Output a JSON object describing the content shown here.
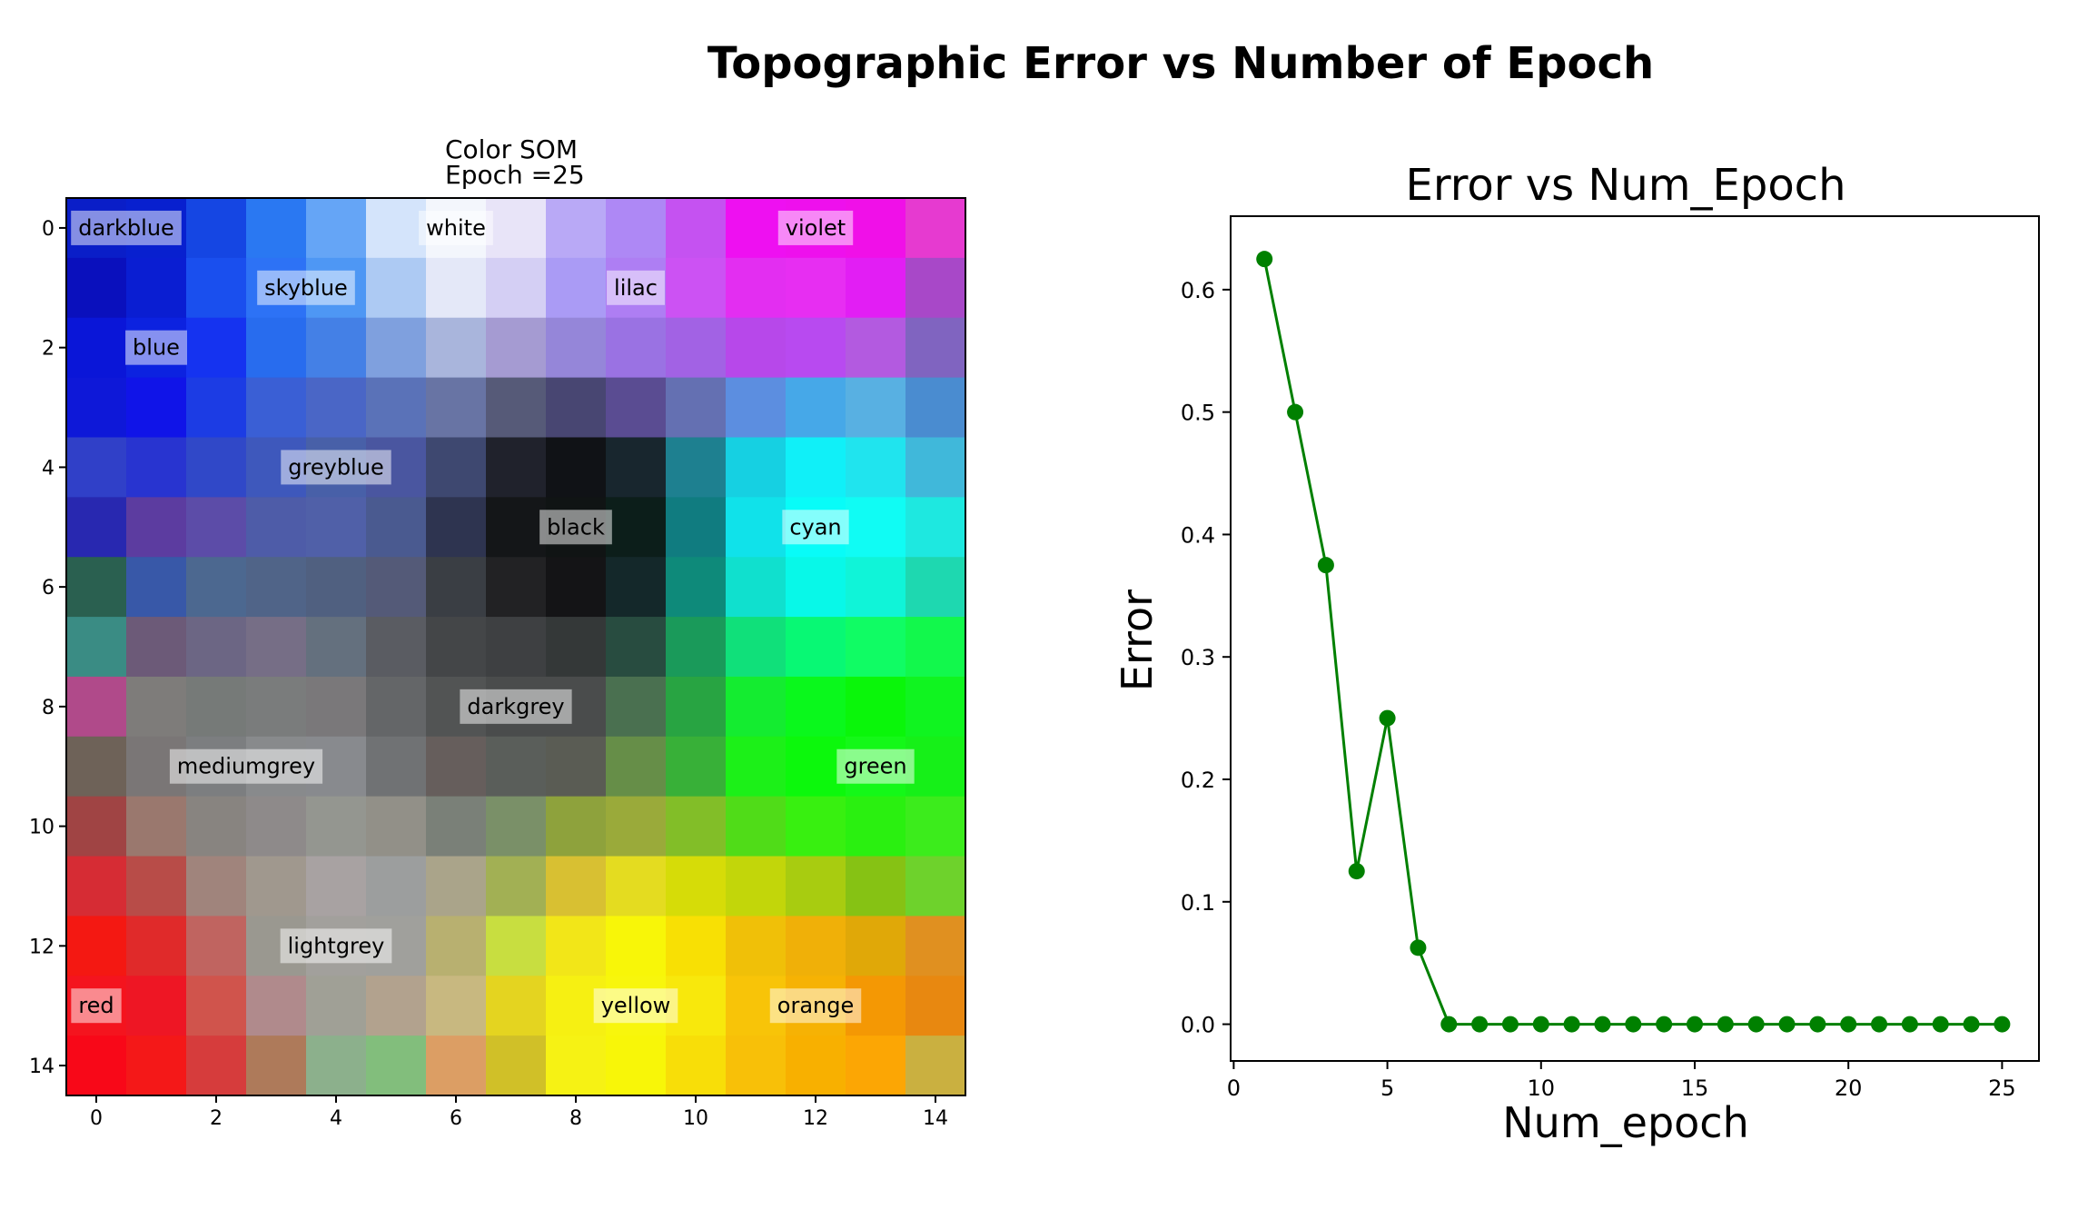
{
  "figure_title": "Topographic Error vs Number of Epoch",
  "chart_data": [
    {
      "type": "heatmap",
      "title": "Color SOM",
      "subtitle": "Epoch =25",
      "grid_size": [
        15,
        15
      ],
      "x_ticks": [
        "0",
        "2",
        "4",
        "6",
        "8",
        "10",
        "12",
        "14"
      ],
      "y_ticks": [
        "0",
        "2",
        "4",
        "6",
        "8",
        "10",
        "12",
        "14"
      ],
      "cells": [
        [
          "#0a1ec8",
          "#0820cf",
          "#1546e3",
          "#2a78f2",
          "#65a5f6",
          "#d4e4fb",
          "#f3f6fc",
          "#e8e4f8",
          "#b9a9f6",
          "#ae88f5",
          "#c552f1",
          "#ee10f1",
          "#ee10ed",
          "#f010e8",
          "#e63ad0"
        ],
        [
          "#0a10bd",
          "#0a1ed2",
          "#1a4fee",
          "#2d72f5",
          "#4e97f4",
          "#adcaf3",
          "#e4e8f8",
          "#d4cff4",
          "#aa9bf5",
          "#ae7ef3",
          "#cc52f3",
          "#e32ef1",
          "#e72ef2",
          "#e21ef4",
          "#a848c8"
        ],
        [
          "#0a16d8",
          "#0c22e0",
          "#1533f0",
          "#286cee",
          "#4480e6",
          "#7fa0de",
          "#a9b5dc",
          "#a59bd2",
          "#9586d9",
          "#9a72e3",
          "#a262e4",
          "#b748ea",
          "#b84af0",
          "#b35ae0",
          "#8064c0"
        ],
        [
          "#0e18d8",
          "#1014e8",
          "#1c3ce4",
          "#3a5fd5",
          "#4a66c6",
          "#5a72b8",
          "#6874a4",
          "#565a78",
          "#484672",
          "#5a4c92",
          "#6470b2",
          "#5c8ee0",
          "#46a8e8",
          "#58b0e2",
          "#4a8cd0"
        ],
        [
          "#3040c8",
          "#2834d0",
          "#3048c8",
          "#3e58bc",
          "#4860a8",
          "#4a56a0",
          "#3e4870",
          "#20222c",
          "#101216",
          "#18262e",
          "#1e8090",
          "#16d0e2",
          "#10f0f8",
          "#20e4ee",
          "#40b8da"
        ],
        [
          "#2828b0",
          "#5c3ca0",
          "#5c4ca8",
          "#4e5ca8",
          "#5060a8",
          "#4a5a90",
          "#2e3450",
          "#141618",
          "#101414",
          "#0c1e1a",
          "#107c80",
          "#10e2ea",
          "#08fcf8",
          "#10fcf4",
          "#1ee8e0"
        ],
        [
          "#2a6050",
          "#3858a8",
          "#4c6890",
          "#506488",
          "#506080",
          "#545a78",
          "#3a3e44",
          "#222224",
          "#141416",
          "#14282a",
          "#0e8a7a",
          "#10e0ce",
          "#08f8e8",
          "#10f4d8",
          "#1ed8b0"
        ],
        [
          "#3a8c84",
          "#6c5a78",
          "#6c6684",
          "#766e86",
          "#64707e",
          "#5a5c62",
          "#444648",
          "#3e4042",
          "#343838",
          "#284c40",
          "#1a9a5a",
          "#10e07a",
          "#08f874",
          "#10fc64",
          "#12f84c"
        ],
        [
          "#b04a8a",
          "#7e7c7a",
          "#767a78",
          "#7a7c7c",
          "#7a787a",
          "#646668",
          "#525454",
          "#4a4c4c",
          "#4a4c4c",
          "#4a7050",
          "#28a442",
          "#14ec30",
          "#0af81c",
          "#0af60a",
          "#10f420"
        ],
        [
          "#6e6258",
          "#7a7676",
          "#7c7e80",
          "#888a8c",
          "#888a8e",
          "#707274",
          "#665e5c",
          "#5a5e5a",
          "#5a5c54",
          "#668e48",
          "#38b038",
          "#1cf018",
          "#0cf80c",
          "#14f818",
          "#16f018"
        ],
        [
          "#a04444",
          "#9a786e",
          "#888480",
          "#8e8a8a",
          "#949690",
          "#929088",
          "#7a8078",
          "#7a9068",
          "#8ea23c",
          "#9aaa3a",
          "#82be28",
          "#50dc18",
          "#38f010",
          "#2af010",
          "#3cec1c"
        ],
        [
          "#d62c34",
          "#b84c48",
          "#a0847c",
          "#a0988e",
          "#a8a2a2",
          "#9c9e9e",
          "#aaa48a",
          "#a2b054",
          "#d8c032",
          "#e4dc20",
          "#d6dc08",
          "#c2d60a",
          "#a8cc10",
          "#86c214",
          "#6ed22c"
        ],
        [
          "#f41812",
          "#e02a2a",
          "#c06460",
          "#9a9890",
          "#a2a09c",
          "#a0a09c",
          "#b8b070",
          "#c8de40",
          "#f2e618",
          "#f8f608",
          "#f8e004",
          "#f0c008",
          "#f0b008",
          "#e0a808",
          "#e09020"
        ],
        [
          "#f4141e",
          "#ee1624",
          "#d0544c",
          "#b08a8c",
          "#a0a096",
          "#b2a28e",
          "#c8b880",
          "#e4d420",
          "#f6f012",
          "#f8f60c",
          "#f8e80c",
          "#f8c408",
          "#f6b204",
          "#f49804",
          "#e88810"
        ],
        [
          "#f80818",
          "#f41818",
          "#d63c3c",
          "#ae7a5a",
          "#8cb08c",
          "#82be7c",
          "#dc9e64",
          "#d0c028",
          "#f6f214",
          "#f8f608",
          "#f8de08",
          "#f8c008",
          "#f8b000",
          "#fca604",
          "#cab040"
        ]
      ],
      "labels": [
        {
          "text": "darkblue",
          "col": 0.5,
          "row": 0
        },
        {
          "text": "white",
          "col": 6,
          "row": 0
        },
        {
          "text": "violet",
          "col": 12,
          "row": 0
        },
        {
          "text": "skyblue",
          "col": 3.5,
          "row": 1
        },
        {
          "text": "lilac",
          "col": 9,
          "row": 1
        },
        {
          "text": "blue",
          "col": 1,
          "row": 2
        },
        {
          "text": "greyblue",
          "col": 4,
          "row": 4
        },
        {
          "text": "black",
          "col": 8,
          "row": 5
        },
        {
          "text": "cyan",
          "col": 12,
          "row": 5
        },
        {
          "text": "darkgrey",
          "col": 7,
          "row": 8
        },
        {
          "text": "mediumgrey",
          "col": 2.5,
          "row": 9
        },
        {
          "text": "green",
          "col": 13,
          "row": 9
        },
        {
          "text": "lightgrey",
          "col": 4,
          "row": 12
        },
        {
          "text": "red",
          "col": 0,
          "row": 13
        },
        {
          "text": "yellow",
          "col": 9,
          "row": 13
        },
        {
          "text": "orange",
          "col": 12,
          "row": 13
        }
      ]
    },
    {
      "type": "line",
      "title": "Error vs Num_Epoch",
      "xlabel": "Num_epoch",
      "ylabel": "Error",
      "xlim": [
        -0.1,
        26.2
      ],
      "ylim": [
        -0.03,
        0.66
      ],
      "x_ticks": [
        "0",
        "5",
        "10",
        "15",
        "20",
        "25"
      ],
      "y_ticks": [
        "0.0",
        "0.1",
        "0.2",
        "0.3",
        "0.4",
        "0.5",
        "0.6"
      ],
      "color": "#008000",
      "grid": false,
      "series": [
        {
          "x": [
            1,
            2,
            3,
            4,
            5,
            6,
            7,
            8,
            9,
            10,
            11,
            12,
            13,
            14,
            15,
            16,
            17,
            18,
            19,
            20,
            21,
            22,
            23,
            24,
            25
          ],
          "values": [
            0.625,
            0.5,
            0.375,
            0.125,
            0.25,
            0.0625,
            0,
            0,
            0,
            0,
            0,
            0,
            0,
            0,
            0,
            0,
            0,
            0,
            0,
            0,
            0,
            0,
            0,
            0,
            0
          ]
        }
      ]
    }
  ]
}
